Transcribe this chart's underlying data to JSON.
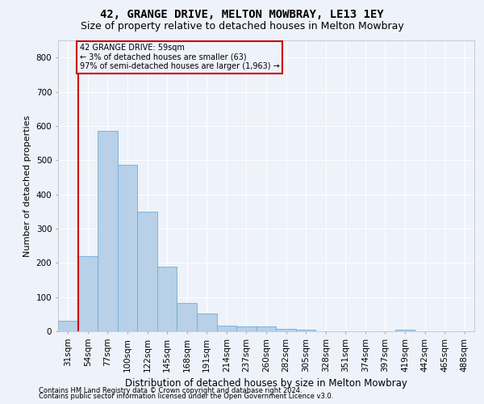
{
  "title1": "42, GRANGE DRIVE, MELTON MOWBRAY, LE13 1EY",
  "title2": "Size of property relative to detached houses in Melton Mowbray",
  "xlabel": "Distribution of detached houses by size in Melton Mowbray",
  "ylabel": "Number of detached properties",
  "categories": [
    "31sqm",
    "54sqm",
    "77sqm",
    "100sqm",
    "122sqm",
    "145sqm",
    "168sqm",
    "191sqm",
    "214sqm",
    "237sqm",
    "260sqm",
    "282sqm",
    "305sqm",
    "328sqm",
    "351sqm",
    "374sqm",
    "397sqm",
    "419sqm",
    "442sqm",
    "465sqm",
    "488sqm"
  ],
  "values": [
    30,
    220,
    585,
    487,
    350,
    190,
    83,
    52,
    17,
    15,
    13,
    8,
    5,
    0,
    0,
    0,
    0,
    5,
    0,
    0,
    0
  ],
  "bar_color": "#b8d0e8",
  "bar_edge_color": "#6aaed6",
  "highlight_bar_index": 1,
  "highlight_color": "#cc0000",
  "annotation_title": "42 GRANGE DRIVE: 59sqm",
  "annotation_line1": "← 3% of detached houses are smaller (63)",
  "annotation_line2": "97% of semi-detached houses are larger (1,963) →",
  "annotation_box_color": "#cc0000",
  "ylim": [
    0,
    850
  ],
  "yticks": [
    0,
    100,
    200,
    300,
    400,
    500,
    600,
    700,
    800
  ],
  "footnote1": "Contains HM Land Registry data © Crown copyright and database right 2024.",
  "footnote2": "Contains public sector information licensed under the Open Government Licence v3.0.",
  "background_color": "#eef2fa",
  "grid_color": "#ffffff",
  "title1_fontsize": 10,
  "title2_fontsize": 9,
  "xlabel_fontsize": 8.5,
  "ylabel_fontsize": 8,
  "tick_fontsize": 7.5,
  "footnote_fontsize": 6
}
